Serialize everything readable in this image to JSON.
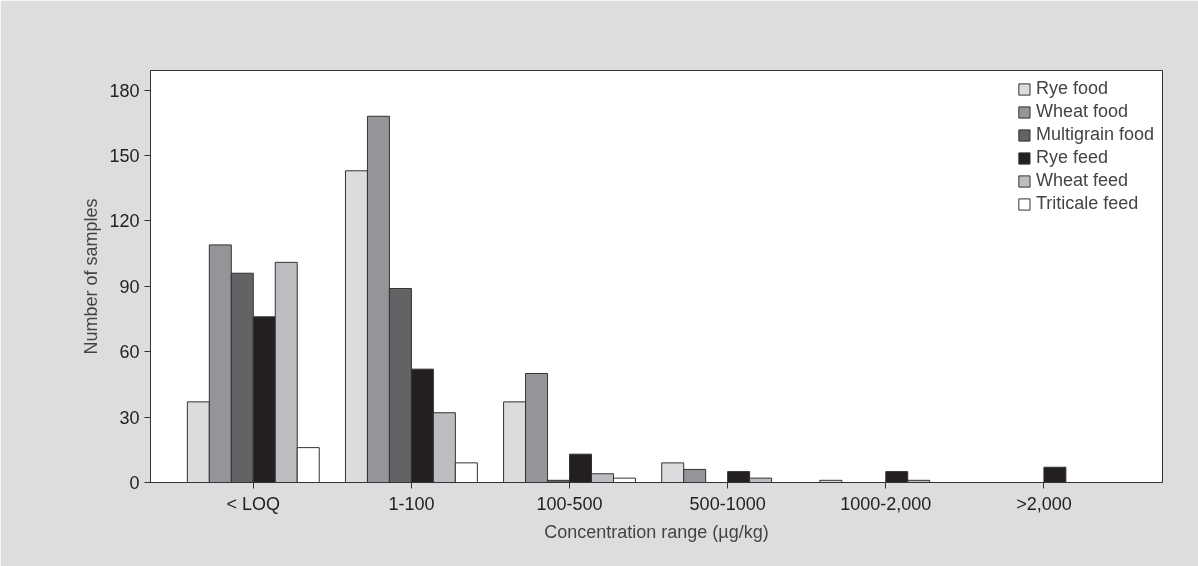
{
  "chart_data": {
    "type": "bar",
    "xlabel": "Concentration range (µg/kg)",
    "ylabel": "Number of samples",
    "categories": [
      "< LOQ",
      "1-100",
      "100-500",
      "500-1000",
      "1000-2,000",
      ">2,000"
    ],
    "series": [
      {
        "name": "Rye food",
        "color": "#dcdcde",
        "values": [
          37,
          143,
          37,
          9,
          1,
          0
        ]
      },
      {
        "name": "Wheat food",
        "color": "#949598",
        "values": [
          109,
          168,
          50,
          6,
          0,
          0
        ]
      },
      {
        "name": "Multigrain food",
        "color": "#636365",
        "values": [
          96,
          89,
          1,
          0,
          0,
          0
        ]
      },
      {
        "name": "Rye feed",
        "color": "#231f20",
        "values": [
          76,
          52,
          13,
          5,
          5,
          7
        ]
      },
      {
        "name": "Wheat feed",
        "color": "#bcbdc0",
        "values": [
          101,
          32,
          4,
          2,
          1,
          0
        ]
      },
      {
        "name": "Triticale feed",
        "color": "#ffffff",
        "values": [
          16,
          9,
          2,
          0,
          0,
          0
        ]
      }
    ],
    "ylim": [
      0,
      189
    ],
    "yticks": [
      0,
      30,
      60,
      90,
      120,
      150,
      180
    ],
    "grid": false,
    "legend": "top right"
  }
}
